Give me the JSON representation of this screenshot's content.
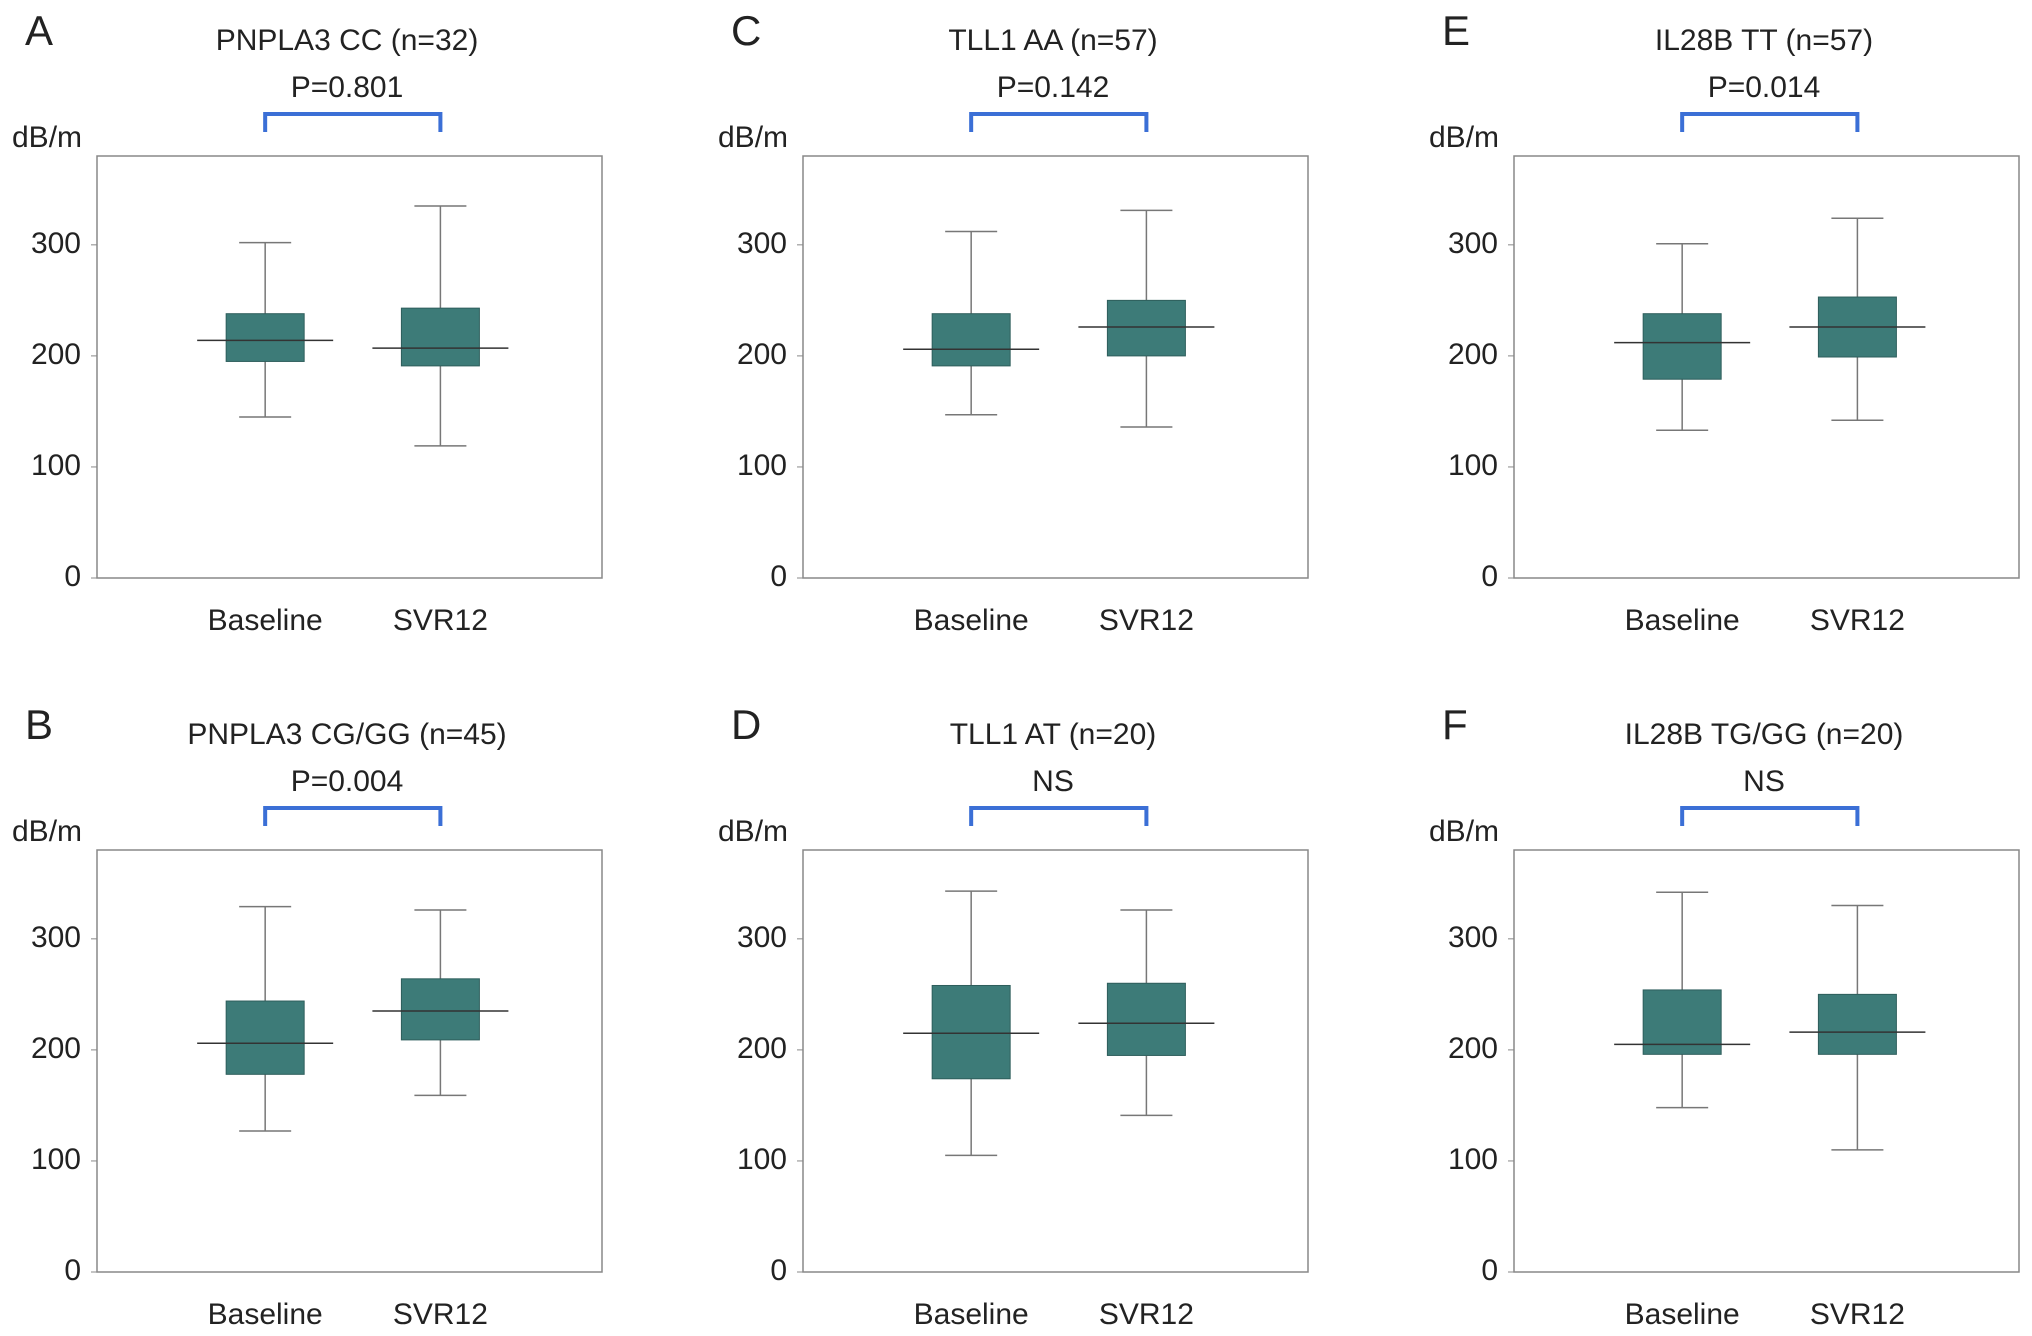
{
  "chart_data": [
    {
      "type": "box",
      "panel": "A",
      "title": "PNPLA3 CC (n=32)",
      "annotation": "P=0.801",
      "ylabel": "dB/m",
      "categories": [
        "Baseline",
        "SVR12"
      ],
      "min": [
        145,
        119
      ],
      "q1": [
        195,
        191
      ],
      "median": [
        214,
        207
      ],
      "q3": [
        238,
        243
      ],
      "max": [
        302,
        335
      ],
      "ylim": [
        0,
        380
      ],
      "yticks": [
        0,
        100,
        200,
        300
      ],
      "color": "#3d7b78",
      "bracket_color": "#3b6fd6"
    },
    {
      "type": "box",
      "panel": "B",
      "title": "PNPLA3 CG/GG (n=45)",
      "annotation": "P=0.004",
      "ylabel": "dB/m",
      "categories": [
        "Baseline",
        "SVR12"
      ],
      "min": [
        127,
        159
      ],
      "q1": [
        178,
        209
      ],
      "median": [
        206,
        235
      ],
      "q3": [
        244,
        264
      ],
      "max": [
        329,
        326
      ],
      "ylim": [
        0,
        380
      ],
      "yticks": [
        0,
        100,
        200,
        300
      ],
      "color": "#3d7b78",
      "bracket_color": "#3b6fd6"
    },
    {
      "type": "box",
      "panel": "C",
      "title": "TLL1 AA (n=57)",
      "annotation": "P=0.142",
      "ylabel": "dB/m",
      "categories": [
        "Baseline",
        "SVR12"
      ],
      "min": [
        147,
        136
      ],
      "q1": [
        191,
        200
      ],
      "median": [
        206,
        226
      ],
      "q3": [
        238,
        250
      ],
      "max": [
        312,
        331
      ],
      "ylim": [
        0,
        380
      ],
      "yticks": [
        0,
        100,
        200,
        300
      ],
      "color": "#3d7b78",
      "bracket_color": "#3b6fd6"
    },
    {
      "type": "box",
      "panel": "D",
      "title": "TLL1 AT (n=20)",
      "annotation": "NS",
      "ylabel": "dB/m",
      "categories": [
        "Baseline",
        "SVR12"
      ],
      "min": [
        105,
        141
      ],
      "q1": [
        174,
        195
      ],
      "median": [
        215,
        224
      ],
      "q3": [
        258,
        260
      ],
      "max": [
        343,
        326
      ],
      "ylim": [
        0,
        380
      ],
      "yticks": [
        0,
        100,
        200,
        300
      ],
      "color": "#3d7b78",
      "bracket_color": "#3b6fd6"
    },
    {
      "type": "box",
      "panel": "E",
      "title": "IL28B TT (n=57)",
      "annotation": "P=0.014",
      "ylabel": "dB/m",
      "categories": [
        "Baseline",
        "SVR12"
      ],
      "min": [
        133,
        142
      ],
      "q1": [
        179,
        199
      ],
      "median": [
        212,
        226
      ],
      "q3": [
        238,
        253
      ],
      "max": [
        301,
        324
      ],
      "ylim": [
        0,
        380
      ],
      "yticks": [
        0,
        100,
        200,
        300
      ],
      "color": "#3d7b78",
      "bracket_color": "#3b6fd6"
    },
    {
      "type": "box",
      "panel": "F",
      "title": "IL28B TG/GG (n=20)",
      "annotation": "NS",
      "ylabel": "dB/m",
      "categories": [
        "Baseline",
        "SVR12"
      ],
      "min": [
        148,
        110
      ],
      "q1": [
        196,
        196
      ],
      "median": [
        205,
        216
      ],
      "q3": [
        254,
        250
      ],
      "max": [
        342,
        330
      ],
      "ylim": [
        0,
        380
      ],
      "yticks": [
        0,
        100,
        200,
        300
      ],
      "color": "#3d7b78",
      "bracket_color": "#3b6fd6"
    }
  ]
}
